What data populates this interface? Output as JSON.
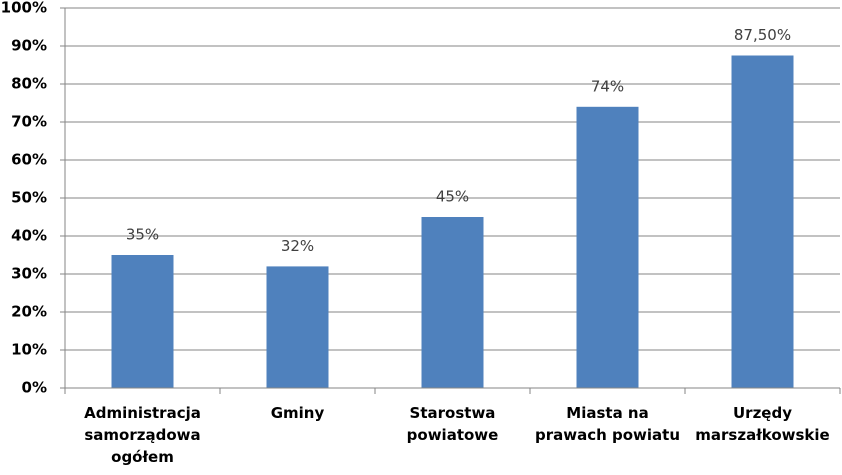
{
  "chart_data": {
    "type": "bar",
    "categories": [
      "Administracja\nsamorządowa\nogółem",
      "Gminy",
      "Starostwa\npowiatowe",
      "Miasta na\nprawach powiatu",
      "Urzędy\nmarszałkowskie"
    ],
    "values": [
      35,
      32,
      45,
      74,
      87.5
    ],
    "value_labels": [
      "35%",
      "32%",
      "45%",
      "74%",
      "87,50%"
    ],
    "color": "#4f81bd",
    "ylim": [
      0,
      100
    ],
    "yticks": [
      {
        "value": 0,
        "label": "0%"
      },
      {
        "value": 10,
        "label": "10%"
      },
      {
        "value": 20,
        "label": "20%"
      },
      {
        "value": 30,
        "label": "30%"
      },
      {
        "value": 40,
        "label": "40%"
      },
      {
        "value": 50,
        "label": "50%"
      },
      {
        "value": 60,
        "label": "60%"
      },
      {
        "value": 70,
        "label": "70%"
      },
      {
        "value": 80,
        "label": "80%"
      },
      {
        "value": 90,
        "label": "90%"
      },
      {
        "value": 100,
        "label": "100%"
      }
    ],
    "grid": true
  }
}
